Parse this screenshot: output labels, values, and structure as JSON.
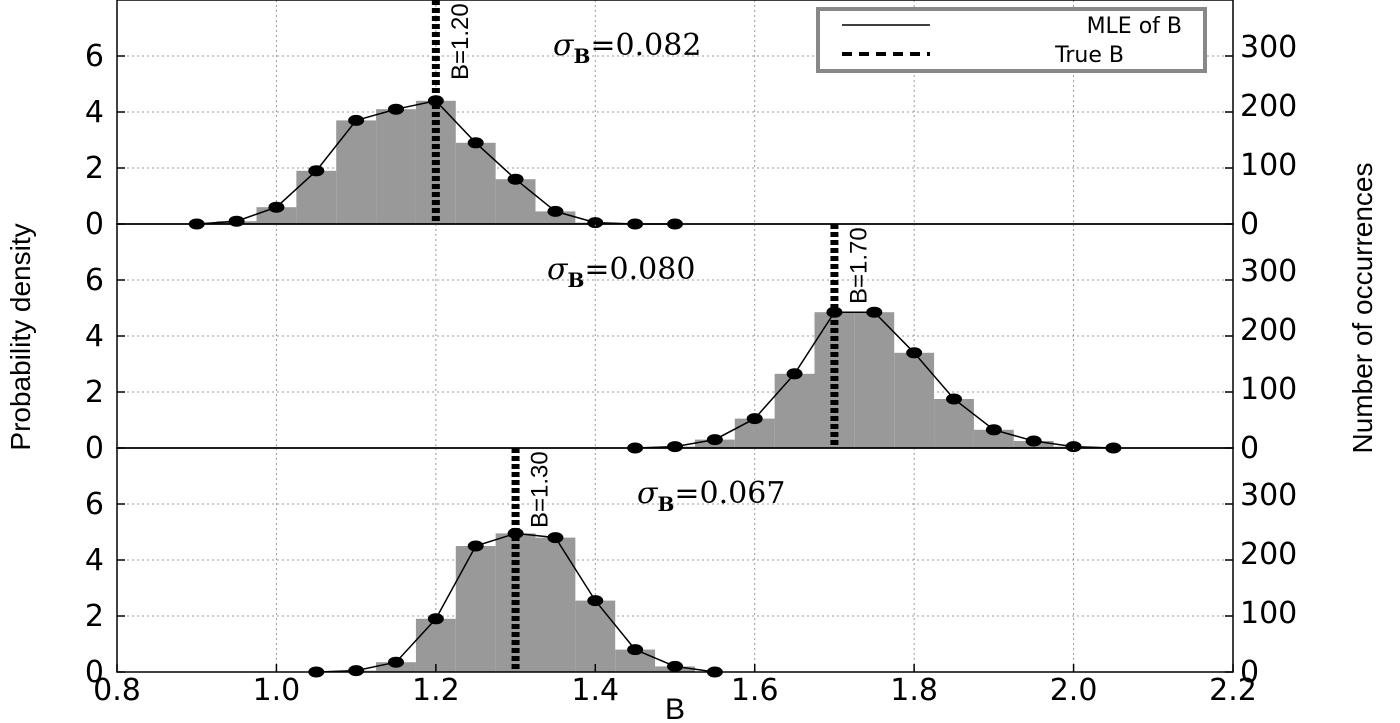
{
  "chart_data": {
    "type": "bar",
    "xlabel": "B",
    "ylabel_left": "Probability density",
    "ylabel_right": "Number of occurrences",
    "xlim": [
      0.8,
      2.2
    ],
    "xticks": [
      "0.8",
      "1.0",
      "1.2",
      "1.4",
      "1.6",
      "1.8",
      "2.0",
      "2.2"
    ],
    "xtick_values": [
      0.8,
      1.0,
      1.2,
      1.4,
      1.6,
      1.8,
      2.0,
      2.2
    ],
    "ylim_left": [
      0,
      8
    ],
    "yticks_left": [
      "0",
      "2",
      "4",
      "6"
    ],
    "ylim_right": [
      0,
      380
    ],
    "yticks_right": [
      "0",
      "100",
      "200",
      "300"
    ],
    "grid": true,
    "legend": {
      "placement": "top-right",
      "entries": [
        {
          "label": "MLE of B",
          "style": "solid"
        },
        {
          "label": "True B",
          "style": "dashed"
        }
      ]
    },
    "panels": [
      {
        "sigma_label": "=0.082",
        "true_b": 1.2,
        "true_b_label": "B=1.20",
        "bin_width": 0.05,
        "bins": [
          0.9,
          0.95,
          1.0,
          1.05,
          1.1,
          1.15,
          1.2,
          1.25,
          1.3,
          1.35,
          1.4,
          1.45,
          1.5
        ],
        "density": [
          0.0,
          0.1,
          0.6,
          1.9,
          3.7,
          4.1,
          4.4,
          2.9,
          1.6,
          0.45,
          0.05,
          0.0,
          0.0
        ],
        "mle_x": [
          0.9,
          0.95,
          1.0,
          1.05,
          1.1,
          1.15,
          1.2,
          1.25,
          1.3,
          1.35,
          1.4,
          1.45,
          1.5
        ],
        "mle_y": [
          0.0,
          0.1,
          0.6,
          1.9,
          3.7,
          4.1,
          4.4,
          2.9,
          1.6,
          0.45,
          0.05,
          0.0,
          0.0
        ]
      },
      {
        "sigma_label": "=0.080",
        "true_b": 1.7,
        "true_b_label": "B=1.70",
        "bin_width": 0.05,
        "bins": [
          1.45,
          1.5,
          1.55,
          1.6,
          1.65,
          1.7,
          1.75,
          1.8,
          1.85,
          1.9,
          1.95,
          2.0,
          2.05
        ],
        "density": [
          0.0,
          0.05,
          0.3,
          1.05,
          2.65,
          4.85,
          4.85,
          3.4,
          1.75,
          0.65,
          0.25,
          0.05,
          0.0
        ],
        "mle_x": [
          1.45,
          1.5,
          1.55,
          1.6,
          1.65,
          1.7,
          1.75,
          1.8,
          1.85,
          1.9,
          1.95,
          2.0,
          2.05
        ],
        "mle_y": [
          0.0,
          0.05,
          0.3,
          1.05,
          2.65,
          4.85,
          4.85,
          3.4,
          1.75,
          0.65,
          0.25,
          0.05,
          0.0
        ]
      },
      {
        "sigma_label": "=0.067",
        "true_b": 1.3,
        "true_b_label": "B=1.30",
        "bin_width": 0.05,
        "bins": [
          1.05,
          1.1,
          1.15,
          1.2,
          1.25,
          1.3,
          1.35,
          1.4,
          1.45,
          1.5,
          1.55
        ],
        "density": [
          0.0,
          0.05,
          0.35,
          1.9,
          4.5,
          4.95,
          4.8,
          2.55,
          0.8,
          0.2,
          0.0
        ],
        "mle_x": [
          1.05,
          1.1,
          1.15,
          1.2,
          1.25,
          1.3,
          1.35,
          1.4,
          1.45,
          1.5,
          1.55
        ],
        "mle_y": [
          0.0,
          0.05,
          0.35,
          1.9,
          4.5,
          4.95,
          4.8,
          2.55,
          0.8,
          0.2,
          0.0
        ]
      }
    ]
  }
}
